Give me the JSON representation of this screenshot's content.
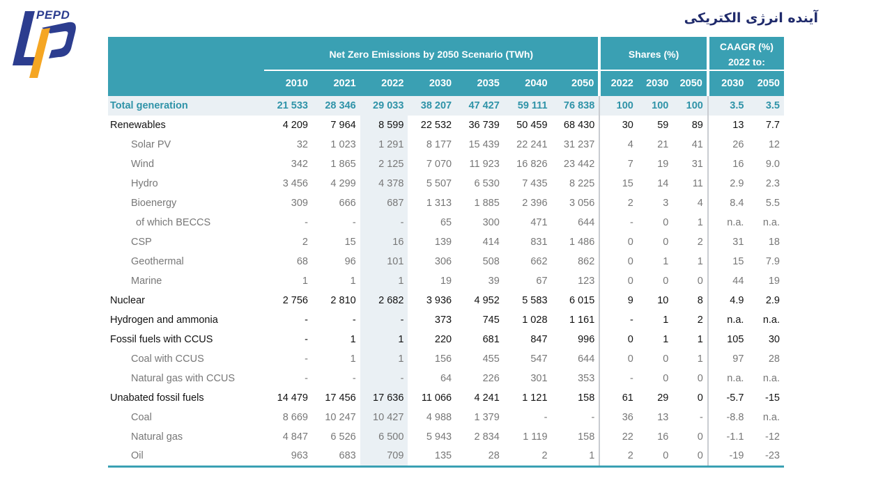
{
  "logo": {
    "text": "PEPD",
    "colors": {
      "blue": "#2c3d8f",
      "orange": "#f5a623"
    }
  },
  "page_title": "آینده انرژی الکتریکی",
  "table": {
    "group_headers": {
      "nze": "Net Zero Emissions by 2050 Scenario (TWh)",
      "shares": "Shares (%)",
      "caagr_line1": "CAAGR (%)",
      "caagr_line2": "2022 to:"
    },
    "year_headers": [
      "2010",
      "2021",
      "2022",
      "2030",
      "2035",
      "2040",
      "2050",
      "2022",
      "2030",
      "2050",
      "2030",
      "2050"
    ],
    "rows": [
      {
        "type": "total",
        "label": "Total generation",
        "cells": [
          "21 533",
          "28 346",
          "29 033",
          "38 207",
          "47 427",
          "59 111",
          "76 838",
          "100",
          "100",
          "100",
          "3.5",
          "3.5"
        ]
      },
      {
        "type": "main",
        "label": "Renewables",
        "cells": [
          "4 209",
          "7 964",
          "8 599",
          "22 532",
          "36 739",
          "50 459",
          "68 430",
          "30",
          "59",
          "89",
          "13",
          "7.7"
        ]
      },
      {
        "type": "sub",
        "label": "Solar PV",
        "cells": [
          "32",
          "1 023",
          "1 291",
          "8 177",
          "15 439",
          "22 241",
          "31 237",
          "4",
          "21",
          "41",
          "26",
          "12"
        ]
      },
      {
        "type": "sub",
        "label": "Wind",
        "cells": [
          "342",
          "1 865",
          "2 125",
          "7 070",
          "11 923",
          "16 826",
          "23 442",
          "7",
          "19",
          "31",
          "16",
          "9.0"
        ]
      },
      {
        "type": "sub",
        "label": "Hydro",
        "cells": [
          "3 456",
          "4 299",
          "4 378",
          "5 507",
          "6 530",
          "7 435",
          "8 225",
          "15",
          "14",
          "11",
          "2.9",
          "2.3"
        ]
      },
      {
        "type": "sub",
        "label": "Bioenergy",
        "cells": [
          "309",
          "666",
          "687",
          "1 313",
          "1 885",
          "2 396",
          "3 056",
          "2",
          "3",
          "4",
          "8.4",
          "5.5"
        ]
      },
      {
        "type": "subsub",
        "label": "of which BECCS",
        "cells": [
          "-",
          "-",
          "-",
          "65",
          "300",
          "471",
          "644",
          "-",
          "0",
          "1",
          "n.a.",
          "n.a."
        ]
      },
      {
        "type": "sub",
        "label": "CSP",
        "cells": [
          "2",
          "15",
          "16",
          "139",
          "414",
          "831",
          "1 486",
          "0",
          "0",
          "2",
          "31",
          "18"
        ]
      },
      {
        "type": "sub",
        "label": "Geothermal",
        "cells": [
          "68",
          "96",
          "101",
          "306",
          "508",
          "662",
          "862",
          "0",
          "1",
          "1",
          "15",
          "7.9"
        ]
      },
      {
        "type": "sub",
        "label": "Marine",
        "cells": [
          "1",
          "1",
          "1",
          "19",
          "39",
          "67",
          "123",
          "0",
          "0",
          "0",
          "44",
          "19"
        ]
      },
      {
        "type": "main",
        "label": "Nuclear",
        "cells": [
          "2 756",
          "2 810",
          "2 682",
          "3 936",
          "4 952",
          "5 583",
          "6 015",
          "9",
          "10",
          "8",
          "4.9",
          "2.9"
        ]
      },
      {
        "type": "main",
        "label": "Hydrogen and ammonia",
        "cells": [
          "-",
          "-",
          "-",
          "373",
          "745",
          "1 028",
          "1 161",
          "-",
          "1",
          "2",
          "n.a.",
          "n.a."
        ]
      },
      {
        "type": "main",
        "label": "Fossil fuels with CCUS",
        "cells": [
          "-",
          "1",
          "1",
          "220",
          "681",
          "847",
          "996",
          "0",
          "1",
          "1",
          "105",
          "30"
        ]
      },
      {
        "type": "sub",
        "label": "Coal with CCUS",
        "cells": [
          "-",
          "1",
          "1",
          "156",
          "455",
          "547",
          "644",
          "0",
          "0",
          "1",
          "97",
          "28"
        ]
      },
      {
        "type": "sub",
        "label": "Natural gas with CCUS",
        "cells": [
          "-",
          "-",
          "-",
          "64",
          "226",
          "301",
          "353",
          "-",
          "0",
          "0",
          "n.a.",
          "n.a."
        ]
      },
      {
        "type": "main",
        "label": "Unabated fossil fuels",
        "cells": [
          "14 479",
          "17 456",
          "17 636",
          "11 066",
          "4 241",
          "1 121",
          "158",
          "61",
          "29",
          "0",
          "-5.7",
          "-15"
        ]
      },
      {
        "type": "sub",
        "label": "Coal",
        "cells": [
          "8 669",
          "10 247",
          "10 427",
          "4 988",
          "1 379",
          "-",
          "-",
          "36",
          "13",
          "-",
          "-8.8",
          "n.a."
        ]
      },
      {
        "type": "sub",
        "label": "Natural gas",
        "cells": [
          "4 847",
          "6 526",
          "6 500",
          "5 943",
          "2 834",
          "1 119",
          "158",
          "22",
          "16",
          "0",
          "-1.1",
          "-12"
        ]
      },
      {
        "type": "sub",
        "label": "Oil",
        "cells": [
          "963",
          "683",
          "709",
          "135",
          "28",
          "2",
          "1",
          "2",
          "0",
          "0",
          "-19",
          "-23"
        ]
      }
    ]
  }
}
